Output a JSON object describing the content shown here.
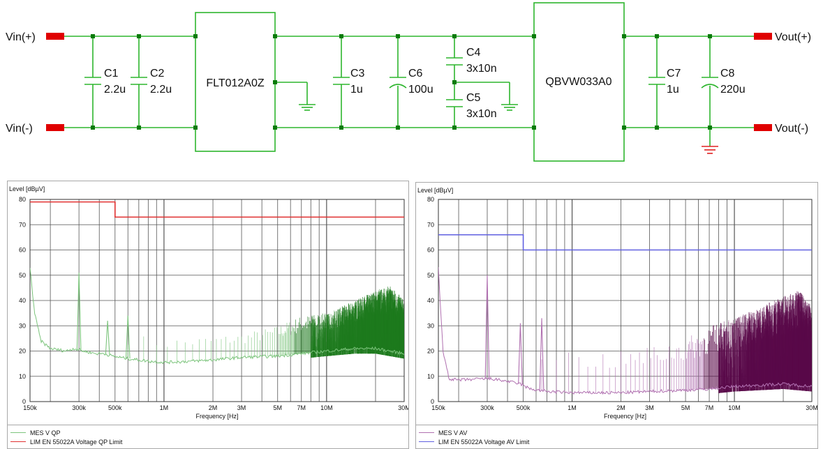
{
  "schematic": {
    "ports": {
      "vin_plus": "Vin(+)",
      "vin_minus": "Vin(-)",
      "vout_plus": "Vout(+)",
      "vout_minus": "Vout(-)"
    },
    "modules": {
      "filter": "FLT012A0Z",
      "converter": "QBVW033A0"
    },
    "capacitors": [
      {
        "ref": "C1",
        "value": "2.2u"
      },
      {
        "ref": "C2",
        "value": "2.2u"
      },
      {
        "ref": "C3",
        "value": "1u"
      },
      {
        "ref": "C6",
        "value": "100u"
      },
      {
        "ref": "C4",
        "value": "3x10n"
      },
      {
        "ref": "C5",
        "value": "3x10n"
      },
      {
        "ref": "C7",
        "value": "1u"
      },
      {
        "ref": "C8",
        "value": "220u"
      }
    ],
    "colors": {
      "wire": "#2db52d",
      "node": "#0a7a0a",
      "port": "#e00000",
      "ground": "#e02020",
      "module": "#2db52d"
    }
  },
  "chart_data": [
    {
      "type": "line",
      "title": "",
      "ylabel": "Level [dBµV]",
      "xlabel": "Frequency [Hz]",
      "x_scale": "log",
      "xlim": [
        150000,
        30000000
      ],
      "ylim": [
        0,
        80
      ],
      "yticks": [
        0,
        10,
        20,
        30,
        40,
        50,
        60,
        70,
        80
      ],
      "xtick_labels": [
        {
          "value": 150000,
          "label": "150k"
        },
        {
          "value": 300000,
          "label": "300k"
        },
        {
          "value": 500000,
          "label": "500k"
        },
        {
          "value": 1000000,
          "label": "1M"
        },
        {
          "value": 2000000,
          "label": "2M"
        },
        {
          "value": 3000000,
          "label": "3M"
        },
        {
          "value": 5000000,
          "label": "5M"
        },
        {
          "value": 7000000,
          "label": "7M"
        },
        {
          "value": 10000000,
          "label": "10M"
        },
        {
          "value": 30000000,
          "label": "30M"
        }
      ],
      "grid": true,
      "legend_position": "bottom",
      "series": [
        {
          "name": "MES   V QP",
          "color": "#7cc47c",
          "dark_color": "#1e7a1e",
          "kind": "measurement",
          "baseline": [
            [
              150000,
              53
            ],
            [
              160000,
              35
            ],
            [
              175000,
              24
            ],
            [
              200000,
              21
            ],
            [
              250000,
              20
            ],
            [
              280000,
              21
            ],
            [
              320000,
              20
            ],
            [
              380000,
              19
            ],
            [
              430000,
              19
            ],
            [
              480000,
              18
            ],
            [
              600000,
              17
            ],
            [
              800000,
              16
            ],
            [
              1000000,
              15.5
            ],
            [
              1500000,
              16
            ],
            [
              2000000,
              16.5
            ],
            [
              3000000,
              17.5
            ],
            [
              5000000,
              18
            ],
            [
              7000000,
              19
            ],
            [
              10000000,
              20
            ],
            [
              15000000,
              21
            ],
            [
              20000000,
              21
            ],
            [
              30000000,
              19
            ]
          ],
          "peaks": [
            [
              300000,
              51
            ],
            [
              450000,
              32
            ],
            [
              600000,
              34
            ]
          ],
          "harmonic_envelope": [
            [
              600000,
              27
            ],
            [
              1000000,
              25
            ],
            [
              2000000,
              26
            ],
            [
              3000000,
              27
            ],
            [
              5000000,
              30
            ],
            [
              7000000,
              34
            ],
            [
              10000000,
              35
            ],
            [
              15000000,
              40
            ],
            [
              20000000,
              44
            ],
            [
              25000000,
              46
            ],
            [
              30000000,
              40
            ]
          ],
          "harmonic_spacing_hz": 150000
        },
        {
          "name": "LIM  EN 55022A Voltage QP Limit",
          "color": "#e03030",
          "kind": "limit",
          "points": [
            [
              150000,
              79
            ],
            [
              500000,
              79
            ],
            [
              500000,
              73
            ],
            [
              30000000,
              73
            ]
          ]
        }
      ]
    },
    {
      "type": "line",
      "title": "",
      "ylabel": "Level [dBµV]",
      "xlabel": "Frequency [Hz]",
      "x_scale": "log",
      "xlim": [
        150000,
        30000000
      ],
      "ylim": [
        0,
        80
      ],
      "yticks": [
        0,
        10,
        20,
        30,
        40,
        50,
        60,
        70,
        80
      ],
      "xtick_labels": [
        {
          "value": 150000,
          "label": "150k"
        },
        {
          "value": 300000,
          "label": "300k"
        },
        {
          "value": 500000,
          "label": "500k"
        },
        {
          "value": 1000000,
          "label": "1M"
        },
        {
          "value": 2000000,
          "label": "2M"
        },
        {
          "value": 3000000,
          "label": "3M"
        },
        {
          "value": 5000000,
          "label": "5M"
        },
        {
          "value": 7000000,
          "label": "7M"
        },
        {
          "value": 10000000,
          "label": "10M"
        },
        {
          "value": 30000000,
          "label": "30M"
        }
      ],
      "grid": true,
      "legend_position": "bottom",
      "series": [
        {
          "name": "MES V AV",
          "color": "#b070b0",
          "dark_color": "#5a0a4a",
          "kind": "measurement",
          "baseline": [
            [
              150000,
              53
            ],
            [
              160000,
              20
            ],
            [
              175000,
              9
            ],
            [
              200000,
              8.5
            ],
            [
              280000,
              9
            ],
            [
              320000,
              9
            ],
            [
              400000,
              8
            ],
            [
              480000,
              7
            ],
            [
              550000,
              5
            ],
            [
              700000,
              4
            ],
            [
              1000000,
              3.5
            ],
            [
              2000000,
              3.5
            ],
            [
              3000000,
              4
            ],
            [
              5000000,
              4.5
            ],
            [
              7000000,
              5
            ],
            [
              10000000,
              6
            ],
            [
              20000000,
              7
            ],
            [
              30000000,
              6
            ]
          ],
          "peaks": [
            [
              300000,
              50
            ],
            [
              480000,
              31
            ],
            [
              650000,
              33
            ]
          ],
          "harmonic_envelope": [
            [
              650000,
              25
            ],
            [
              1000000,
              20
            ],
            [
              2000000,
              20
            ],
            [
              3000000,
              22
            ],
            [
              5000000,
              25
            ],
            [
              7000000,
              30
            ],
            [
              10000000,
              33
            ],
            [
              15000000,
              38
            ],
            [
              20000000,
              42
            ],
            [
              25000000,
              44
            ],
            [
              30000000,
              38
            ]
          ],
          "harmonic_spacing_hz": 150000
        },
        {
          "name": "LIM  EN 55022A Voltage AV Limit",
          "color": "#6060e0",
          "kind": "limit",
          "points": [
            [
              150000,
              66
            ],
            [
              500000,
              66
            ],
            [
              500000,
              60
            ],
            [
              30000000,
              60
            ]
          ]
        }
      ]
    }
  ]
}
